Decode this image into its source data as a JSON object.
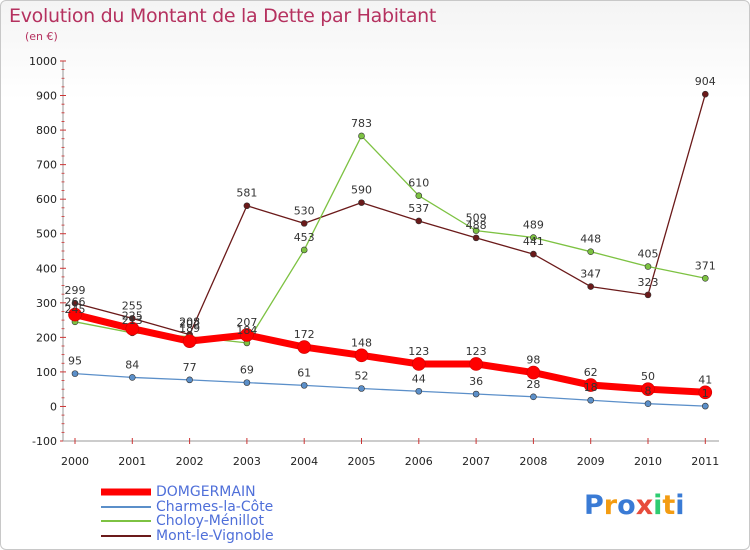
{
  "title": "Evolution du Montant de la Dette par Habitant",
  "subtitle": "(en €)",
  "logo": {
    "text": "Proxiti",
    "letters": [
      "P",
      "r",
      "o",
      "x",
      "i",
      "t",
      "i"
    ],
    "colors": [
      "#3a7bd5",
      "#f39c12",
      "#3a7bd5",
      "#e74c3c",
      "#2ecc71",
      "#f39c12",
      "#3a7bd5"
    ]
  },
  "chart_data": {
    "type": "line",
    "title": "Evolution du Montant de la Dette par Habitant",
    "ylabel": "(en €)",
    "xlabel": "",
    "ylim": [
      -100,
      1000
    ],
    "yticks": [
      "-100",
      "0",
      "100",
      "200",
      "300",
      "400",
      "500",
      "600",
      "700",
      "800",
      "900",
      "1000"
    ],
    "categories": [
      "2000",
      "2001",
      "2002",
      "2003",
      "2004",
      "2005",
      "2006",
      "2007",
      "2008",
      "2009",
      "2010",
      "2011"
    ],
    "grid": false,
    "legend_position": "bottom-left",
    "series": [
      {
        "name": "Mont-le-Vignoble",
        "color": "#6b1a1a",
        "values": [
          299,
          255,
          208,
          581,
          530,
          590,
          537,
          488,
          441,
          347,
          323,
          904
        ]
      },
      {
        "name": "Choloy-Ménillot",
        "color": "#7dc242",
        "values": [
          245,
          213,
          202,
          184,
          453,
          783,
          610,
          509,
          489,
          448,
          405,
          371
        ]
      },
      {
        "name": "Charmes-la-Côte",
        "color": "#5b8fc9",
        "values": [
          95,
          84,
          77,
          69,
          61,
          52,
          44,
          36,
          28,
          18,
          8,
          1
        ]
      },
      {
        "name": "DOMGERMAIN",
        "color": "#ff0000",
        "values": [
          266,
          225,
          189,
          207,
          172,
          148,
          123,
          123,
          98,
          62,
          50,
          41
        ]
      }
    ],
    "data_labels": {
      "Mont-le-Vignoble": [
        "299",
        "255",
        "208",
        "581",
        "530",
        "590",
        "537",
        "488",
        "441",
        "347",
        "323",
        "904"
      ],
      "Choloy-Ménillot": [
        "245",
        "213",
        "202",
        "184",
        "453",
        "783",
        "610",
        "509",
        "489",
        "448",
        "405",
        "371"
      ],
      "Charmes-la-Côte": [
        "95",
        "84",
        "77",
        "69",
        "61",
        "52",
        "44",
        "36",
        "28",
        "18",
        "8",
        "1"
      ],
      "DOMGERMAIN": [
        "266",
        "225",
        "189",
        "207",
        "172",
        "148",
        "123",
        "123",
        "98",
        "62",
        "50",
        "41"
      ]
    }
  },
  "legend": [
    {
      "label": "DOMGERMAIN",
      "color": "#ff0000"
    },
    {
      "label": "Charmes-la-Côte",
      "color": "#5b8fc9"
    },
    {
      "label": "Choloy-Ménillot",
      "color": "#7dc242"
    },
    {
      "label": "Mont-le-Vignoble",
      "color": "#6b1a1a"
    }
  ]
}
